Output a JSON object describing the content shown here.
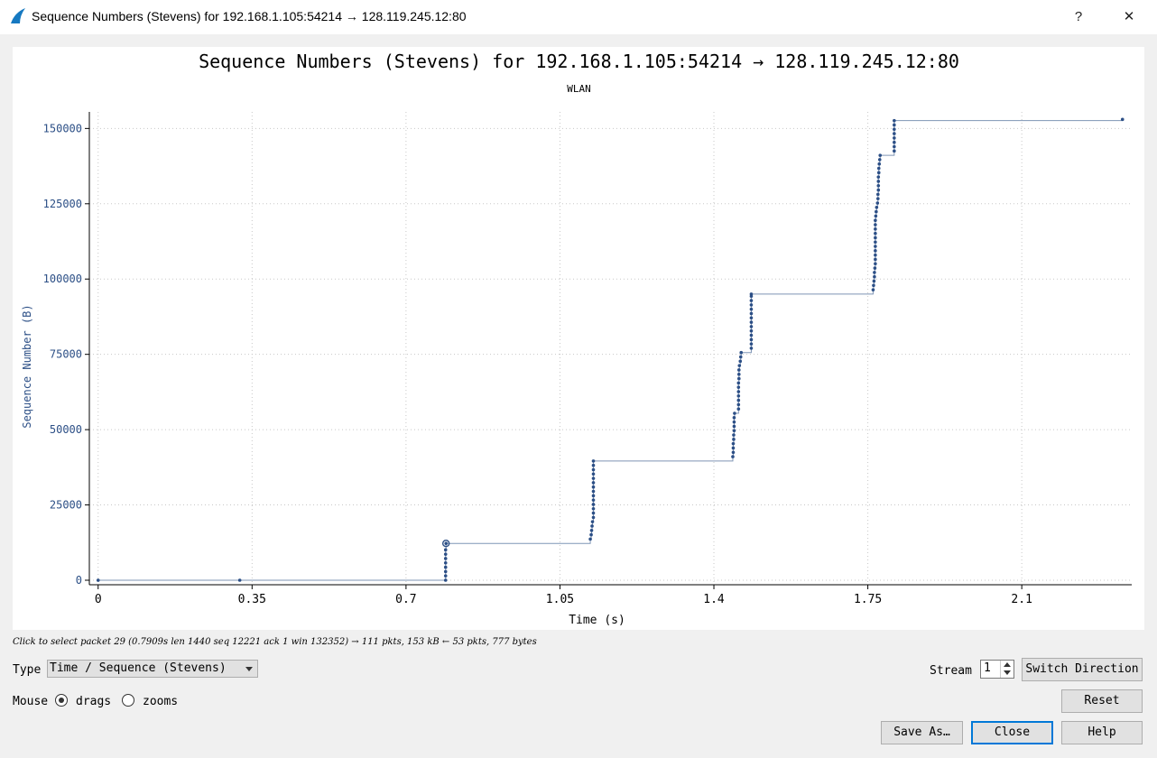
{
  "window": {
    "title": "Sequence Numbers (Stevens) for 192.168.1.105:54214 → 128.119.245.12:80",
    "help_label": "?",
    "close_label": "✕"
  },
  "hint_text": "Click to select packet 29 (0.7909s len 1440 seq 12221 ack 1 win 132352) → 111 pkts, 153 kB ← 53 pkts, 777 bytes",
  "controls": {
    "type_label": "Type",
    "type_value": "Time / Sequence (Stevens)",
    "mouse_label": "Mouse",
    "drags_label": "drags",
    "zooms_label": "zooms",
    "mouse_mode": "drags",
    "stream_label": "Stream",
    "stream_value": "1",
    "switch_direction_label": "Switch Direction",
    "reset_label": "Reset",
    "save_as_label": "Save As…",
    "close_label": "Close",
    "help_label": "Help"
  },
  "colors": {
    "series": "#2c4f86",
    "line": "#7f95b5",
    "axis_text": "#2c4f86",
    "grid": "#c8c8c8",
    "default_button_border": "#0078d7"
  },
  "chart_data": {
    "type": "scatter",
    "title": "Sequence Numbers (Stevens) for 192.168.1.105:54214 → 128.119.245.12:80",
    "subtitle": "WLAN",
    "xlabel": "Time (s)",
    "ylabel": "Sequence Number (B)",
    "xlim": [
      -0.02,
      2.35
    ],
    "ylim": [
      -1500,
      155500
    ],
    "xticks": [
      0,
      0.35,
      0.7,
      1.05,
      1.4,
      1.75,
      2.1
    ],
    "xtick_labels": [
      "0",
      "0.35",
      "0.7",
      "1.05",
      "1.4",
      "1.75",
      "2.1"
    ],
    "yticks": [
      0,
      25000,
      50000,
      75000,
      100000,
      125000,
      150000
    ],
    "ytick_labels": [
      "0",
      "25000",
      "50000",
      "75000",
      "100000",
      "125000",
      "150000"
    ],
    "grid": true,
    "selected_point": {
      "x": 0.7909,
      "y": 12221
    },
    "points": [
      {
        "x": 0.0,
        "y": 0
      },
      {
        "x": 0.322,
        "y": 1
      },
      {
        "x": 0.79,
        "y": 1
      },
      {
        "x": 0.79,
        "y": 1441
      },
      {
        "x": 0.79,
        "y": 2881
      },
      {
        "x": 0.79,
        "y": 4321
      },
      {
        "x": 0.79,
        "y": 5761
      },
      {
        "x": 0.79,
        "y": 7201
      },
      {
        "x": 0.79,
        "y": 8641
      },
      {
        "x": 0.79,
        "y": 10081
      },
      {
        "x": 0.791,
        "y": 12221
      },
      {
        "x": 1.119,
        "y": 13661
      },
      {
        "x": 1.121,
        "y": 15101
      },
      {
        "x": 1.122,
        "y": 16541
      },
      {
        "x": 1.123,
        "y": 17981
      },
      {
        "x": 1.124,
        "y": 19421
      },
      {
        "x": 1.126,
        "y": 20861
      },
      {
        "x": 1.126,
        "y": 22301
      },
      {
        "x": 1.126,
        "y": 23741
      },
      {
        "x": 1.126,
        "y": 25181
      },
      {
        "x": 1.126,
        "y": 26621
      },
      {
        "x": 1.126,
        "y": 28061
      },
      {
        "x": 1.126,
        "y": 29501
      },
      {
        "x": 1.126,
        "y": 30941
      },
      {
        "x": 1.126,
        "y": 32381
      },
      {
        "x": 1.126,
        "y": 33821
      },
      {
        "x": 1.126,
        "y": 35261
      },
      {
        "x": 1.126,
        "y": 36701
      },
      {
        "x": 1.126,
        "y": 38141
      },
      {
        "x": 1.126,
        "y": 39581
      },
      {
        "x": 1.443,
        "y": 41021
      },
      {
        "x": 1.444,
        "y": 42461
      },
      {
        "x": 1.444,
        "y": 43901
      },
      {
        "x": 1.444,
        "y": 45341
      },
      {
        "x": 1.445,
        "y": 46781
      },
      {
        "x": 1.445,
        "y": 48221
      },
      {
        "x": 1.446,
        "y": 49661
      },
      {
        "x": 1.446,
        "y": 51101
      },
      {
        "x": 1.446,
        "y": 52541
      },
      {
        "x": 1.446,
        "y": 53981
      },
      {
        "x": 1.447,
        "y": 55421
      },
      {
        "x": 1.456,
        "y": 56861
      },
      {
        "x": 1.456,
        "y": 58301
      },
      {
        "x": 1.456,
        "y": 59741
      },
      {
        "x": 1.456,
        "y": 61181
      },
      {
        "x": 1.456,
        "y": 62621
      },
      {
        "x": 1.456,
        "y": 64061
      },
      {
        "x": 1.456,
        "y": 65501
      },
      {
        "x": 1.457,
        "y": 66941
      },
      {
        "x": 1.457,
        "y": 68381
      },
      {
        "x": 1.457,
        "y": 69821
      },
      {
        "x": 1.458,
        "y": 71261
      },
      {
        "x": 1.46,
        "y": 72701
      },
      {
        "x": 1.461,
        "y": 74141
      },
      {
        "x": 1.462,
        "y": 75581
      },
      {
        "x": 1.485,
        "y": 77021
      },
      {
        "x": 1.485,
        "y": 78461
      },
      {
        "x": 1.485,
        "y": 79901
      },
      {
        "x": 1.485,
        "y": 81341
      },
      {
        "x": 1.485,
        "y": 82781
      },
      {
        "x": 1.485,
        "y": 84221
      },
      {
        "x": 1.485,
        "y": 85661
      },
      {
        "x": 1.485,
        "y": 87101
      },
      {
        "x": 1.485,
        "y": 88541
      },
      {
        "x": 1.485,
        "y": 89981
      },
      {
        "x": 1.485,
        "y": 91421
      },
      {
        "x": 1.485,
        "y": 92861
      },
      {
        "x": 1.485,
        "y": 94301
      },
      {
        "x": 1.485,
        "y": 95000
      },
      {
        "x": 1.762,
        "y": 96441
      },
      {
        "x": 1.763,
        "y": 97881
      },
      {
        "x": 1.764,
        "y": 99321
      },
      {
        "x": 1.765,
        "y": 100761
      },
      {
        "x": 1.765,
        "y": 102201
      },
      {
        "x": 1.766,
        "y": 103641
      },
      {
        "x": 1.767,
        "y": 105081
      },
      {
        "x": 1.767,
        "y": 106521
      },
      {
        "x": 1.767,
        "y": 107961
      },
      {
        "x": 1.767,
        "y": 109401
      },
      {
        "x": 1.767,
        "y": 110841
      },
      {
        "x": 1.767,
        "y": 112281
      },
      {
        "x": 1.767,
        "y": 113721
      },
      {
        "x": 1.767,
        "y": 115161
      },
      {
        "x": 1.767,
        "y": 116601
      },
      {
        "x": 1.767,
        "y": 118041
      },
      {
        "x": 1.767,
        "y": 119481
      },
      {
        "x": 1.768,
        "y": 120921
      },
      {
        "x": 1.769,
        "y": 122361
      },
      {
        "x": 1.77,
        "y": 123801
      },
      {
        "x": 1.772,
        "y": 125241
      },
      {
        "x": 1.773,
        "y": 126681
      },
      {
        "x": 1.773,
        "y": 128121
      },
      {
        "x": 1.774,
        "y": 129561
      },
      {
        "x": 1.774,
        "y": 131001
      },
      {
        "x": 1.774,
        "y": 132441
      },
      {
        "x": 1.774,
        "y": 133881
      },
      {
        "x": 1.775,
        "y": 135321
      },
      {
        "x": 1.775,
        "y": 136761
      },
      {
        "x": 1.776,
        "y": 138201
      },
      {
        "x": 1.777,
        "y": 139641
      },
      {
        "x": 1.778,
        "y": 141081
      },
      {
        "x": 1.81,
        "y": 142521
      },
      {
        "x": 1.81,
        "y": 143961
      },
      {
        "x": 1.81,
        "y": 145401
      },
      {
        "x": 1.81,
        "y": 146841
      },
      {
        "x": 1.81,
        "y": 148281
      },
      {
        "x": 1.81,
        "y": 149721
      },
      {
        "x": 1.81,
        "y": 151161
      },
      {
        "x": 1.81,
        "y": 152601
      },
      {
        "x": 2.329,
        "y": 153001
      }
    ]
  }
}
